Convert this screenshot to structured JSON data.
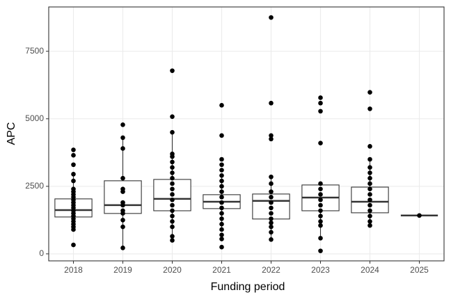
{
  "chart_data": {
    "type": "box",
    "x_label": "Funding period",
    "y_label": "APC",
    "categories": [
      "2018",
      "2019",
      "2020",
      "2021",
      "2022",
      "2023",
      "2024",
      "2025"
    ],
    "boxes": [
      {
        "whislo": 900,
        "q1": 1365,
        "med": 1620,
        "q3": 2035,
        "whishi": 2950
      },
      {
        "whislo": 220,
        "q1": 1495,
        "med": 1805,
        "q3": 2705,
        "whishi": 4300
      },
      {
        "whislo": 500,
        "q1": 1595,
        "med": 2035,
        "q3": 2755,
        "whishi": 4500
      },
      {
        "whislo": 900,
        "q1": 1675,
        "med": 1930,
        "q3": 2190,
        "whishi": 2900
      },
      {
        "whislo": 530,
        "q1": 1290,
        "med": 1960,
        "q3": 2215,
        "whishi": 2850
      },
      {
        "whislo": 580,
        "q1": 1595,
        "med": 2085,
        "q3": 2550,
        "whishi": 2600
      },
      {
        "whislo": 1050,
        "q1": 1520,
        "med": 1930,
        "q3": 2470,
        "whishi": 3500
      },
      {
        "whislo": 1420,
        "q1": 1420,
        "med": 1420,
        "q3": 1420,
        "whishi": 1420
      }
    ],
    "points": [
      [
        330,
        900,
        1000,
        1100,
        1200,
        1300,
        1400,
        1500,
        1600,
        1700,
        1800,
        1900,
        2000,
        2100,
        2200,
        2300,
        2400,
        2700,
        2950,
        3300,
        3650,
        3850
      ],
      [
        220,
        1000,
        1250,
        1500,
        1600,
        1800,
        1900,
        2300,
        2400,
        2800,
        3900,
        4300,
        4780
      ],
      [
        500,
        650,
        1000,
        1200,
        1400,
        1600,
        1800,
        2000,
        2200,
        2400,
        2600,
        2800,
        3000,
        3200,
        3400,
        3600,
        3700,
        4500,
        5080,
        6780
      ],
      [
        250,
        550,
        700,
        900,
        1100,
        1300,
        1500,
        1700,
        1900,
        2100,
        2300,
        2500,
        2700,
        2900,
        3100,
        3300,
        3500,
        4380,
        5500
      ],
      [
        530,
        800,
        1000,
        1150,
        1300,
        1500,
        1700,
        1900,
        2100,
        2300,
        2600,
        2850,
        4250,
        4380,
        5580,
        8750
      ],
      [
        110,
        580,
        1050,
        1200,
        1400,
        1600,
        1800,
        2000,
        2200,
        2400,
        2600,
        4100,
        5280,
        5580,
        5780
      ],
      [
        1050,
        1200,
        1400,
        1600,
        1800,
        2000,
        2200,
        2400,
        2600,
        2800,
        3000,
        3200,
        3500,
        3980,
        5370,
        5980
      ],
      [
        1420
      ]
    ],
    "color": "#000000",
    "ylim": [
      -260,
      9140
    ],
    "yticks": [
      0,
      2500,
      5000,
      7500
    ],
    "grid": true
  }
}
